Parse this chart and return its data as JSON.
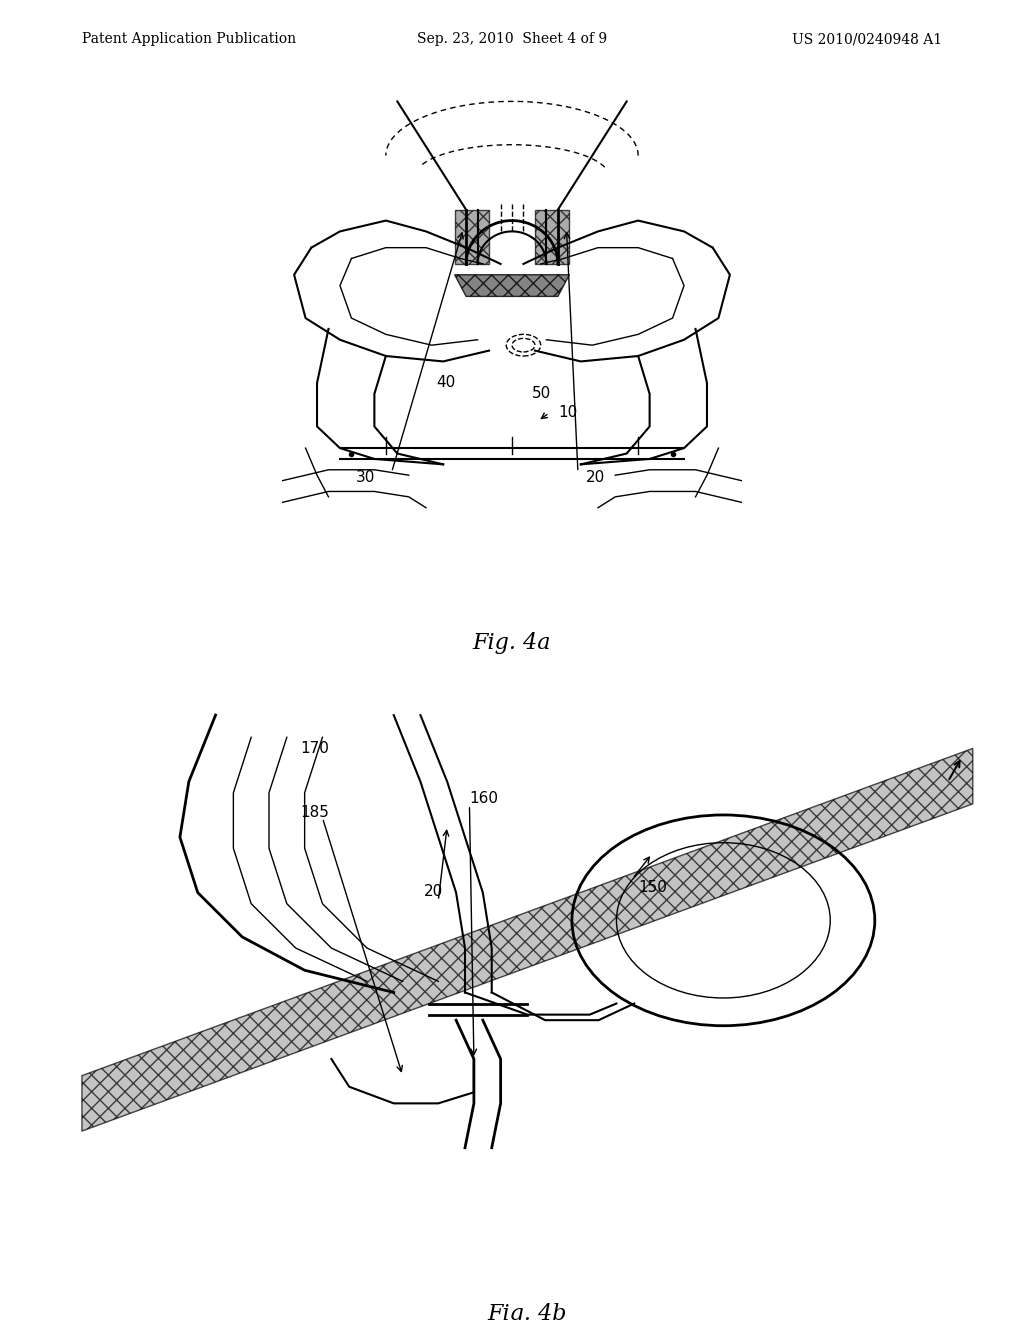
{
  "header_left": "Patent Application Publication",
  "header_center": "Sep. 23, 2010  Sheet 4 of 9",
  "header_right": "US 2010/0240948 A1",
  "fig4a_label": "Fig. 4a",
  "fig4b_label": "Fig. 4b",
  "bg_color": "#ffffff",
  "line_color": "#000000",
  "header_fontsize": 10,
  "fig_label_fontsize": 16,
  "annotation_fontsize": 11
}
